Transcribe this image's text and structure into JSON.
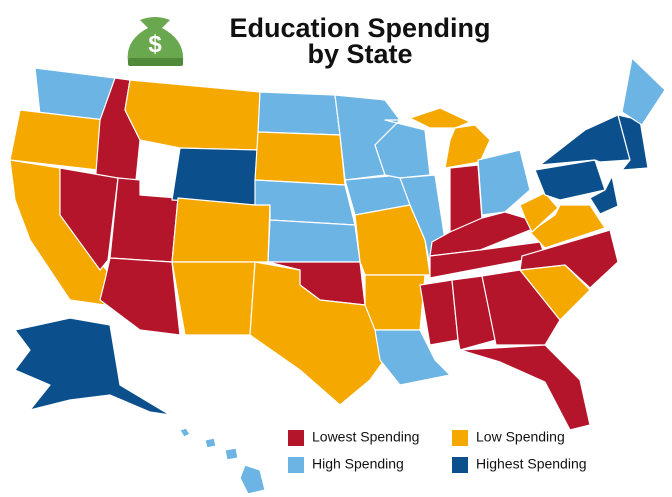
{
  "header": {
    "title_line1": "Education Spending",
    "title_line2": "by State"
  },
  "legend": [
    {
      "label": "Lowest Spending",
      "color": "#b5152b"
    },
    {
      "label": "Low Spending",
      "color": "#f5a800"
    },
    {
      "label": "High Spending",
      "color": "#6cb4e4"
    },
    {
      "label": "Highest Spending",
      "color": "#0b4f8c"
    }
  ]
}
